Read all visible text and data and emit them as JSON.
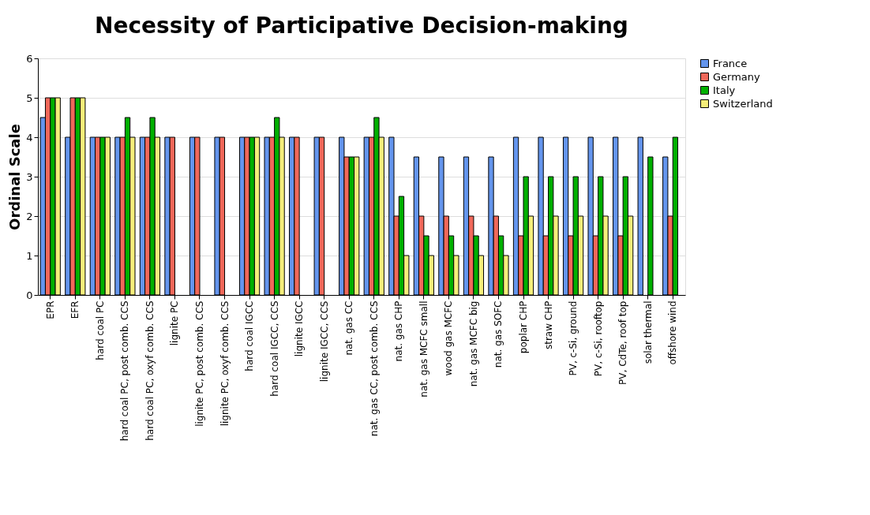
{
  "chart_data": {
    "type": "bar",
    "title": "Necessity of Participative Decision-making",
    "ylabel": "Ordinal Scale",
    "categories": [
      "EPR",
      "EFR",
      "hard coal PC",
      "hard coal PC, post comb. CCS",
      "hard coal PC, oxyf comb. CCS",
      "lignite PC",
      "lignite PC, post comb. CCS",
      "lignite PC, oxyf comb. CCS",
      "hard coal IGCC",
      "hard coal IGCC, CCS",
      "lignite IGCC",
      "lignite IGCC, CCS",
      "nat. gas CC",
      "nat. gas CC, post comb. CCS",
      "nat. gas CHP",
      "nat. gas MCFC small",
      "wood gas MCFC",
      "nat. gas MCFC big",
      "nat. gas SOFC",
      "poplar CHP",
      "straw CHP",
      "PV, c-Si, ground",
      "PV, c-Si, rooftop",
      "PV, CdTe, roof top",
      "solar thermal",
      "offshore wind"
    ],
    "series": [
      {
        "name": "France",
        "color": "#6495ed",
        "values": [
          4.5,
          4,
          4,
          4,
          4,
          4,
          4,
          4,
          4,
          4,
          4,
          4,
          4,
          4,
          4,
          3.5,
          3.5,
          3.5,
          3.5,
          4,
          4,
          4,
          4,
          4,
          4,
          3.5
        ]
      },
      {
        "name": "Germany",
        "color": "#f0685a",
        "values": [
          5,
          5,
          4,
          4,
          4,
          4,
          4,
          4,
          4,
          4,
          4,
          4,
          3.5,
          4,
          2,
          2,
          2,
          2,
          2,
          1.5,
          1.5,
          1.5,
          1.5,
          1.5,
          null,
          2
        ]
      },
      {
        "name": "Italy",
        "color": "#00b000",
        "values": [
          5,
          5,
          4,
          4.5,
          4.5,
          null,
          null,
          null,
          4,
          4.5,
          null,
          null,
          3.5,
          4.5,
          2.5,
          1.5,
          1.5,
          1.5,
          1.5,
          3,
          3,
          3,
          3,
          3,
          3.5,
          4
        ]
      },
      {
        "name": "Switzerland",
        "color": "#f5ee7a",
        "values": [
          5,
          5,
          4,
          4,
          4,
          null,
          null,
          null,
          4,
          4,
          null,
          null,
          3.5,
          4,
          1,
          1,
          1,
          1,
          1,
          2,
          2,
          2,
          2,
          2,
          null,
          null
        ]
      }
    ],
    "ylim": [
      0,
      6
    ],
    "yticks": [
      0,
      1,
      2,
      3,
      4,
      5,
      6
    ],
    "grid": "y",
    "legend": "right"
  }
}
